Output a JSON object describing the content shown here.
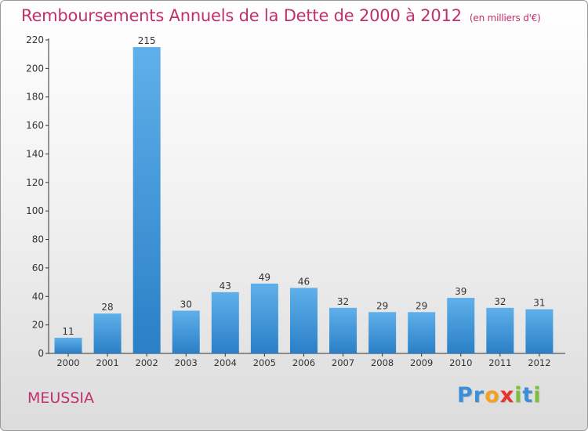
{
  "header": {
    "title": "Remboursements Annuels de la Dette de 2000 à 2012",
    "unit": "(en milliers d'€)"
  },
  "footer": {
    "town": "MEUSSIA",
    "logo_letters": [
      "P",
      "r",
      "o",
      "x",
      "i",
      "t",
      "i"
    ],
    "logo_colors": [
      "#3a8fd8",
      "#3a8fd8",
      "#f5a020",
      "#e8332b",
      "#7bbf3a",
      "#3a8fd8",
      "#7bbf3a"
    ]
  },
  "colors": {
    "bar_light": "#5fb0ea",
    "bar_dark": "#2a7fc6",
    "axis": "#333333",
    "title": "#c0306a"
  },
  "chart_data": {
    "type": "bar",
    "title": "Remboursements Annuels de la Dette de 2000 à 2012",
    "categories": [
      "2000",
      "2001",
      "2002",
      "2003",
      "2004",
      "2005",
      "2006",
      "2007",
      "2008",
      "2009",
      "2010",
      "2011",
      "2012"
    ],
    "values": [
      11,
      28,
      215,
      30,
      43,
      49,
      46,
      32,
      29,
      29,
      39,
      32,
      31
    ],
    "ylim": [
      0,
      220
    ],
    "yticks": [
      0,
      20,
      40,
      60,
      80,
      100,
      120,
      140,
      160,
      180,
      200,
      220
    ],
    "grid": false,
    "data_labels": true
  }
}
